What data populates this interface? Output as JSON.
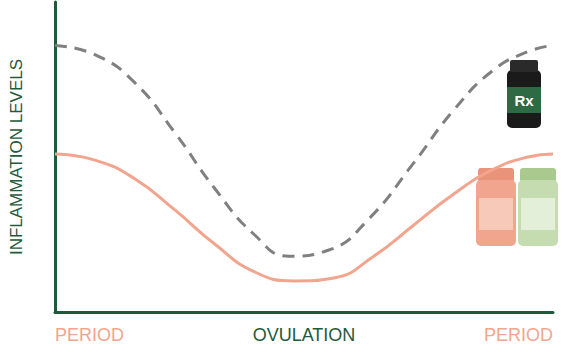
{
  "chart_data": {
    "type": "line",
    "y_label": "INFLAMMATION LEVELS",
    "xlim": [
      0,
      100
    ],
    "xticks": [
      {
        "value": 0,
        "label": "PERIOD"
      },
      {
        "value": 50,
        "label": "OVULATION"
      },
      {
        "value": 100,
        "label": "PERIOD"
      }
    ],
    "ylim": [
      0,
      100
    ],
    "grid": false,
    "tick_labels": "x",
    "annotations": [
      {
        "text": "Rx"
      }
    ],
    "series": [
      {
        "color": "#808080",
        "line_style": "dashed",
        "x": [
          0,
          8,
          16,
          24,
          32,
          40,
          47,
          55,
          63,
          72,
          80,
          88,
          95,
          100
        ],
        "values": [
          86,
          83,
          74,
          58,
          40,
          25,
          18,
          20,
          30,
          48,
          65,
          78,
          84,
          86
        ]
      },
      {
        "color": "#f2a58e",
        "line_style": "solid",
        "x": [
          0,
          8,
          16,
          24,
          32,
          40,
          48,
          56,
          64,
          72,
          80,
          88,
          95,
          100
        ],
        "values": [
          51,
          49,
          43,
          33,
          22,
          13,
          10,
          11,
          18,
          28,
          38,
          46,
          50,
          51
        ]
      }
    ]
  }
}
